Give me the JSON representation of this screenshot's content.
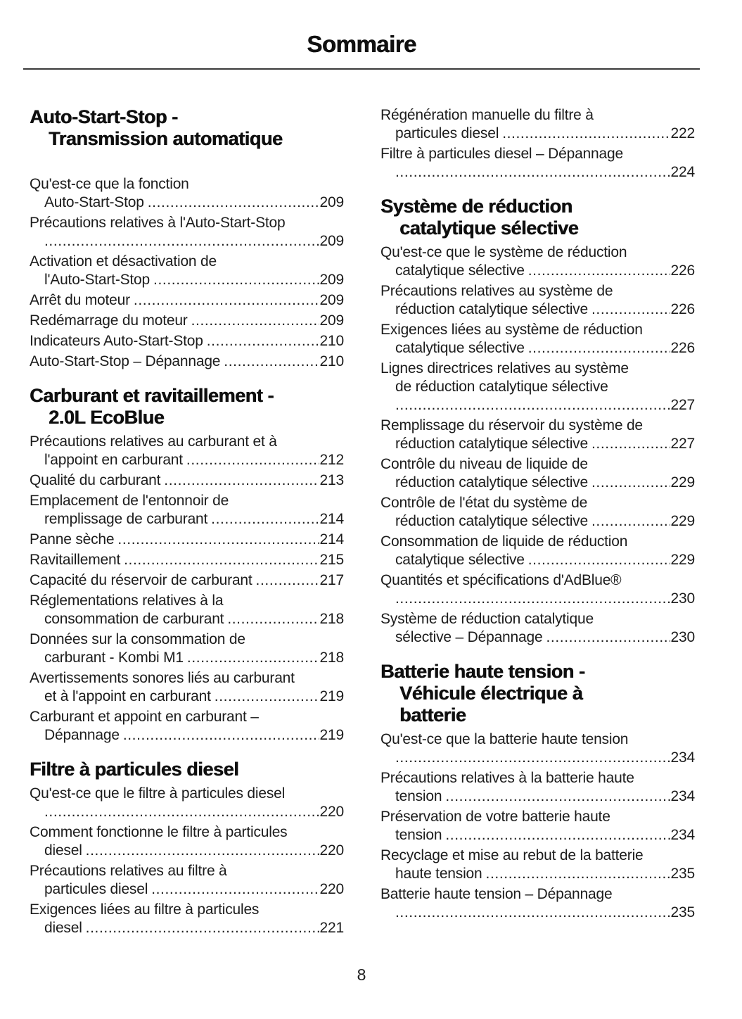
{
  "page": {
    "title": "Sommaire",
    "footer_page_number": "8"
  },
  "colors": {
    "background": "#ffffff",
    "text": "#1c1c1c",
    "heading": "#0f0f0f",
    "rule": "#3a3a3a"
  },
  "columns": [
    {
      "blocks": [
        {
          "type": "heading",
          "first": true,
          "extra_space_after": true,
          "lines": [
            "Auto-Start-Stop -",
            "Transmission automatique"
          ]
        },
        {
          "type": "entries",
          "items": [
            {
              "lines": [
                "Qu'est-ce que la fonction",
                "Auto-Start-Stop"
              ],
              "page": "209"
            },
            {
              "lines": [
                "Précautions relatives à l'Auto-Start-Stop",
                ""
              ],
              "page": "209"
            },
            {
              "lines": [
                "Activation et désactivation de",
                "l'Auto-Start-Stop"
              ],
              "page": "209"
            },
            {
              "lines": [
                "Arrêt du moteur"
              ],
              "page": "209"
            },
            {
              "lines": [
                "Redémarrage du moteur"
              ],
              "page": "209"
            },
            {
              "lines": [
                "Indicateurs Auto-Start-Stop"
              ],
              "page": "210"
            },
            {
              "lines": [
                "Auto-Start-Stop – Dépannage"
              ],
              "page": "210"
            }
          ]
        },
        {
          "type": "heading",
          "lines": [
            "Carburant et ravitaillement -",
            "2.0L EcoBlue"
          ]
        },
        {
          "type": "entries",
          "items": [
            {
              "lines": [
                "Précautions relatives au carburant et à",
                "l'appoint en carburant"
              ],
              "page": "212"
            },
            {
              "lines": [
                "Qualité du carburant"
              ],
              "page": "213"
            },
            {
              "lines": [
                "Emplacement de l'entonnoir de",
                "remplissage de carburant"
              ],
              "page": "214"
            },
            {
              "lines": [
                "Panne sèche"
              ],
              "page": "214"
            },
            {
              "lines": [
                "Ravitaillement"
              ],
              "page": "215"
            },
            {
              "lines": [
                "Capacité du réservoir de carburant"
              ],
              "page": "217"
            },
            {
              "lines": [
                "Réglementations relatives à la",
                "consommation de carburant"
              ],
              "page": "218"
            },
            {
              "lines": [
                "Données sur la consommation de",
                "carburant - Kombi M1"
              ],
              "page": "218"
            },
            {
              "lines": [
                "Avertissements sonores liés au carburant",
                "et à l'appoint en carburant"
              ],
              "page": "219"
            },
            {
              "lines": [
                "Carburant et appoint en carburant –",
                "Dépannage"
              ],
              "page": "219"
            }
          ]
        },
        {
          "type": "heading",
          "lines": [
            "Filtre à particules diesel"
          ]
        },
        {
          "type": "entries",
          "items": [
            {
              "lines": [
                "Qu'est-ce que le filtre à particules diesel",
                ""
              ],
              "page": "220"
            },
            {
              "lines": [
                "Comment fonctionne le filtre à particules",
                "diesel"
              ],
              "page": "220"
            },
            {
              "lines": [
                "Précautions relatives au filtre à",
                "particules diesel"
              ],
              "page": "220"
            },
            {
              "lines": [
                "Exigences liées au filtre à particules",
                "diesel"
              ],
              "page": "221"
            }
          ]
        }
      ]
    },
    {
      "blocks": [
        {
          "type": "entries",
          "items": [
            {
              "lines": [
                "Régénération manuelle du filtre à",
                "particules diesel"
              ],
              "page": "222"
            },
            {
              "lines": [
                "Filtre à particules diesel – Dépannage",
                ""
              ],
              "page": "224"
            }
          ]
        },
        {
          "type": "heading",
          "lines": [
            "Système de réduction",
            "catalytique sélective"
          ]
        },
        {
          "type": "entries",
          "items": [
            {
              "lines": [
                "Qu'est-ce que le système de réduction",
                "catalytique sélective"
              ],
              "page": "226"
            },
            {
              "lines": [
                "Précautions relatives au système de",
                "réduction catalytique sélective"
              ],
              "page": "226"
            },
            {
              "lines": [
                "Exigences liées au système de réduction",
                "catalytique sélective"
              ],
              "page": "226"
            },
            {
              "lines": [
                "Lignes directrices relatives au système",
                "de réduction catalytique sélective",
                ""
              ],
              "page": "227"
            },
            {
              "lines": [
                "Remplissage du réservoir du système de",
                "réduction catalytique sélective"
              ],
              "page": "227"
            },
            {
              "lines": [
                "Contrôle du niveau de liquide de",
                "réduction catalytique sélective"
              ],
              "page": "229"
            },
            {
              "lines": [
                "Contrôle de l'état du système de",
                "réduction catalytique sélective"
              ],
              "page": "229"
            },
            {
              "lines": [
                "Consommation de liquide de réduction",
                "catalytique sélective"
              ],
              "page": "229"
            },
            {
              "lines": [
                "Quantités et spécifications d'AdBlue®",
                ""
              ],
              "page": "230"
            },
            {
              "lines": [
                "Système de réduction catalytique",
                "sélective – Dépannage"
              ],
              "page": "230"
            }
          ]
        },
        {
          "type": "heading",
          "lines": [
            "Batterie haute tension -",
            "Véhicule électrique à",
            "batterie"
          ]
        },
        {
          "type": "entries",
          "items": [
            {
              "lines": [
                "Qu'est-ce que la batterie haute tension",
                ""
              ],
              "page": "234"
            },
            {
              "lines": [
                "Précautions relatives à la batterie haute",
                "tension"
              ],
              "page": "234"
            },
            {
              "lines": [
                "Préservation de votre batterie haute",
                "tension"
              ],
              "page": "234"
            },
            {
              "lines": [
                "Recyclage et mise au rebut de la batterie",
                "haute tension"
              ],
              "page": "235"
            },
            {
              "lines": [
                "Batterie haute tension – Dépannage",
                ""
              ],
              "page": "235"
            }
          ]
        }
      ]
    }
  ]
}
